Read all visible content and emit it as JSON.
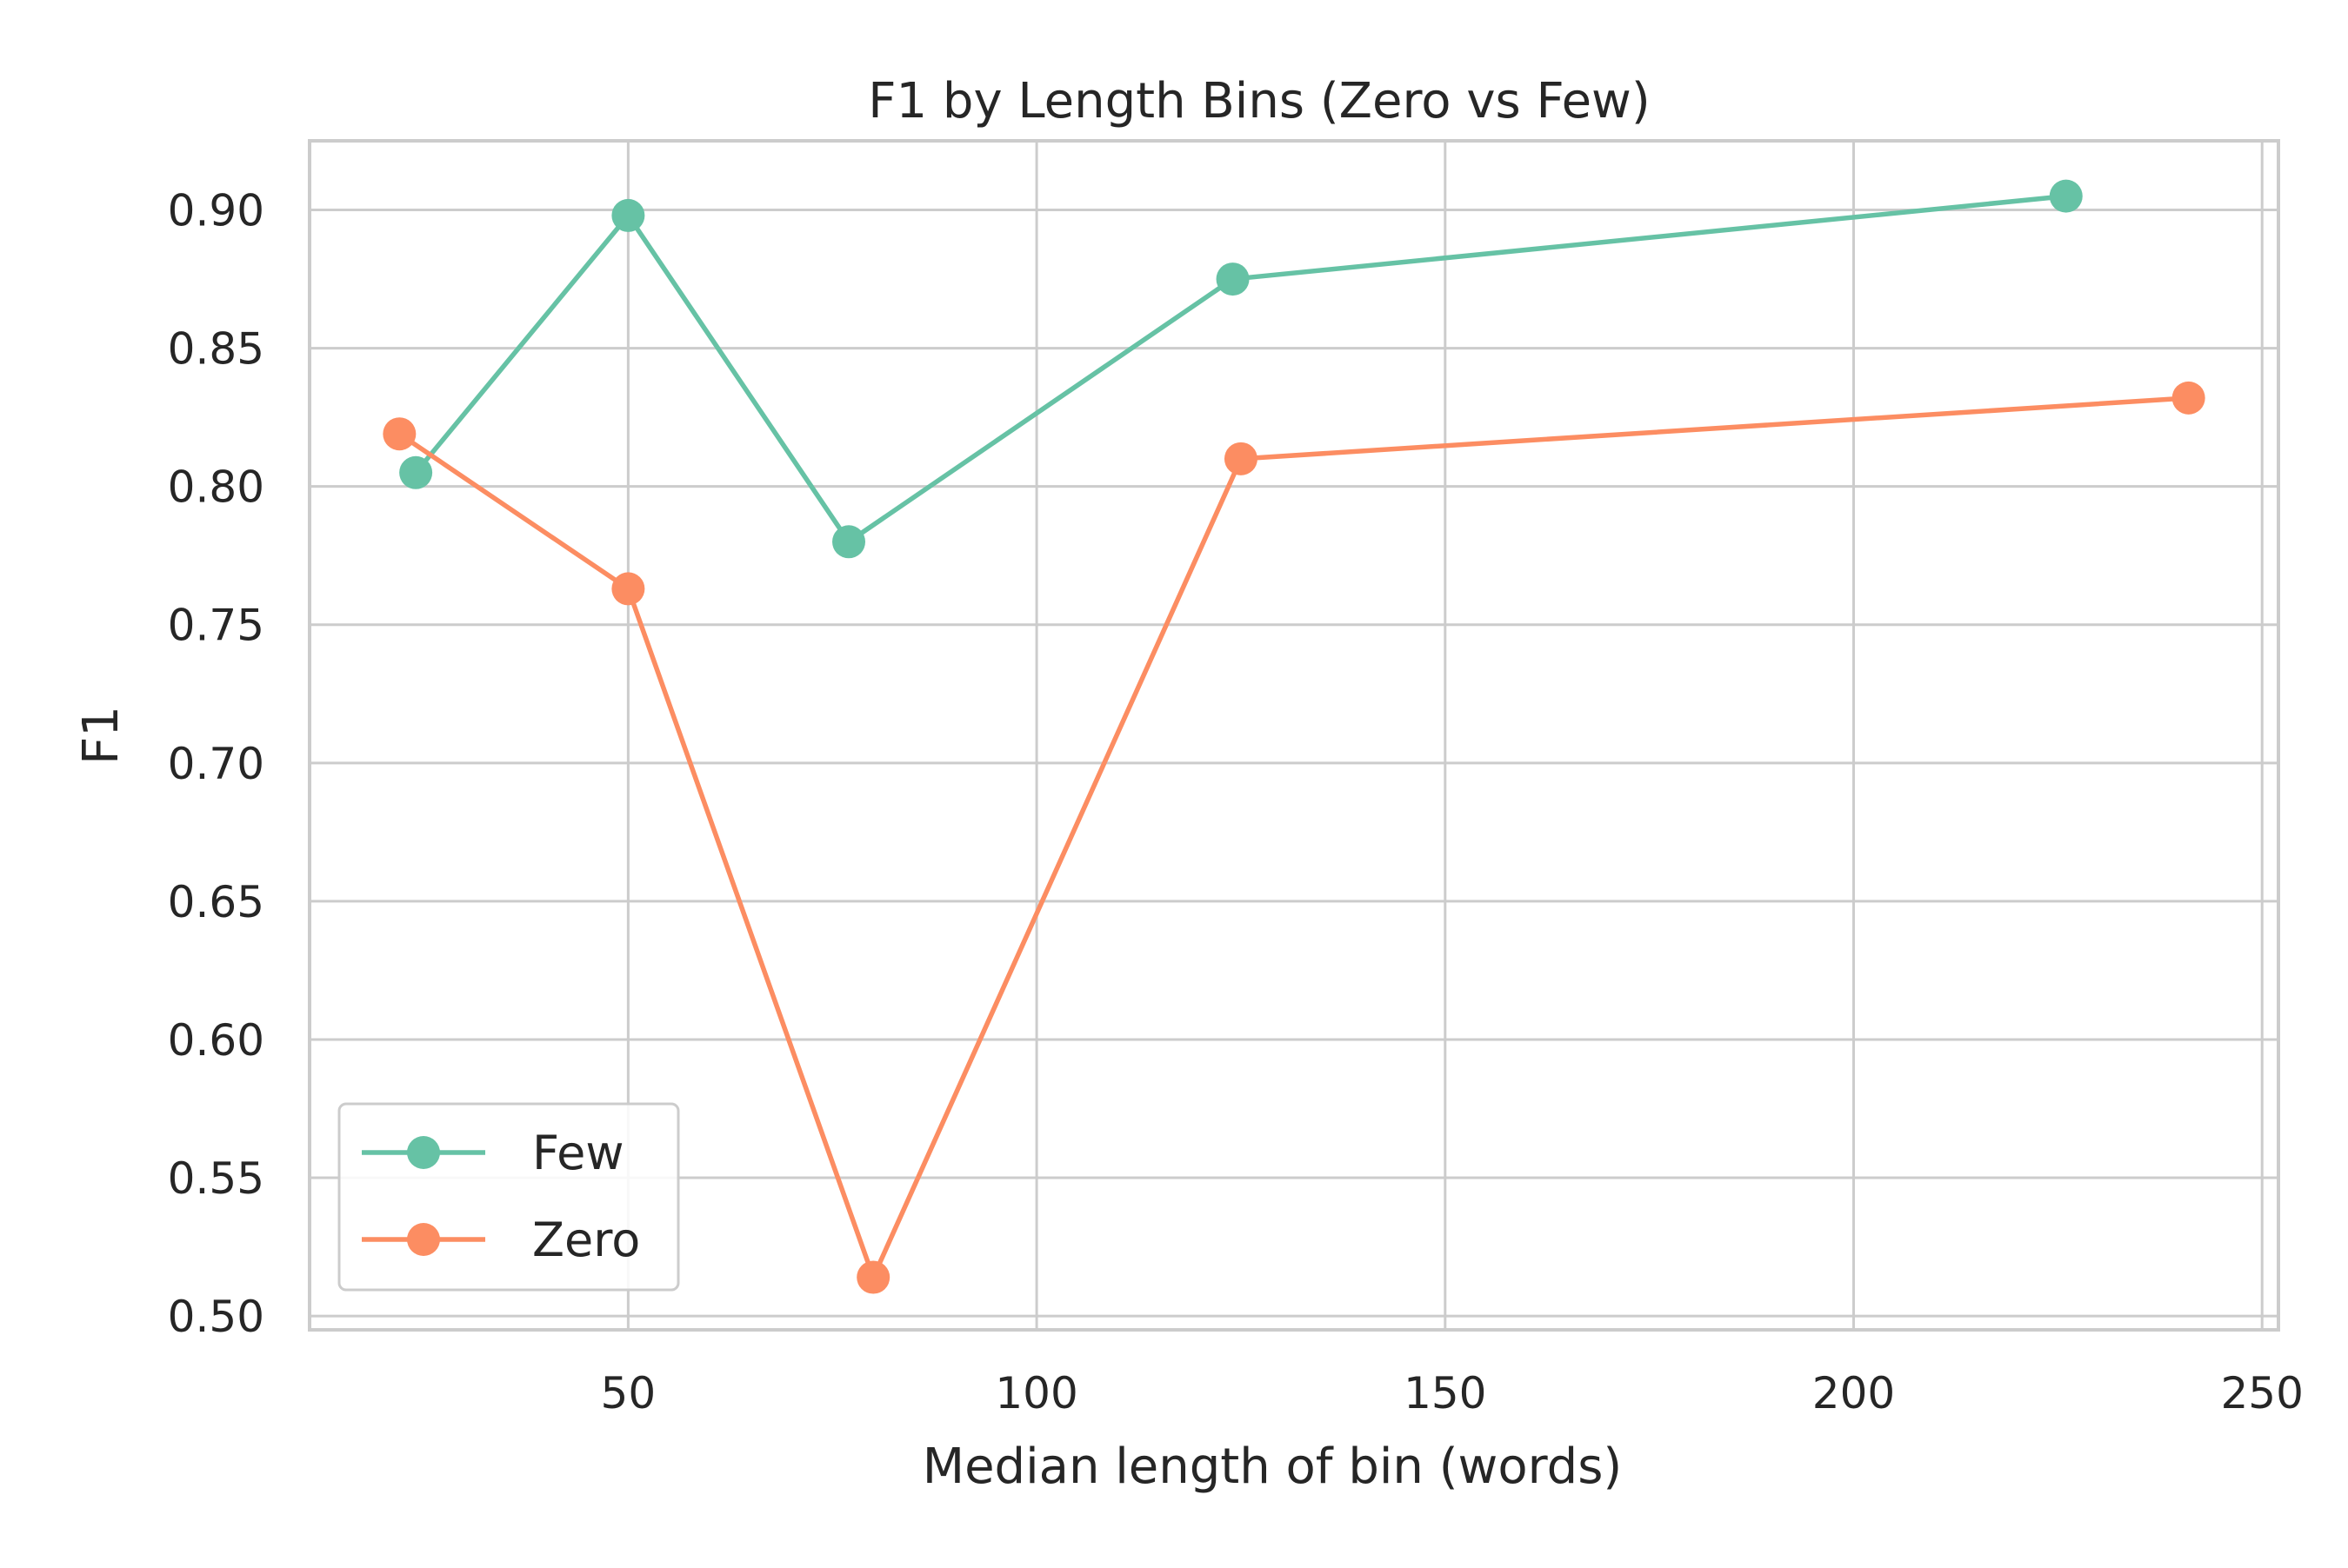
{
  "chart_data": {
    "type": "line",
    "title": "F1 by Length Bins (Zero vs Few)",
    "xlabel": "Median length of bin (words)",
    "ylabel": "F1",
    "xlim": [
      11,
      252
    ],
    "ylim": [
      0.495,
      0.925
    ],
    "xticks": [
      50,
      100,
      150,
      200,
      250
    ],
    "yticks": [
      0.5,
      0.55,
      0.6,
      0.65,
      0.7,
      0.75,
      0.8,
      0.85,
      0.9
    ],
    "grid": true,
    "legend_position": "lower-left",
    "series": [
      {
        "name": "Few",
        "color": "#66c2a5",
        "marker": "circle",
        "x": [
          24,
          50,
          77,
          124,
          226
        ],
        "y": [
          0.805,
          0.898,
          0.78,
          0.875,
          0.905
        ]
      },
      {
        "name": "Zero",
        "color": "#fc8d62",
        "marker": "circle",
        "x": [
          22,
          50,
          80,
          125,
          241
        ],
        "y": [
          0.819,
          0.763,
          0.514,
          0.81,
          0.832
        ]
      }
    ]
  }
}
